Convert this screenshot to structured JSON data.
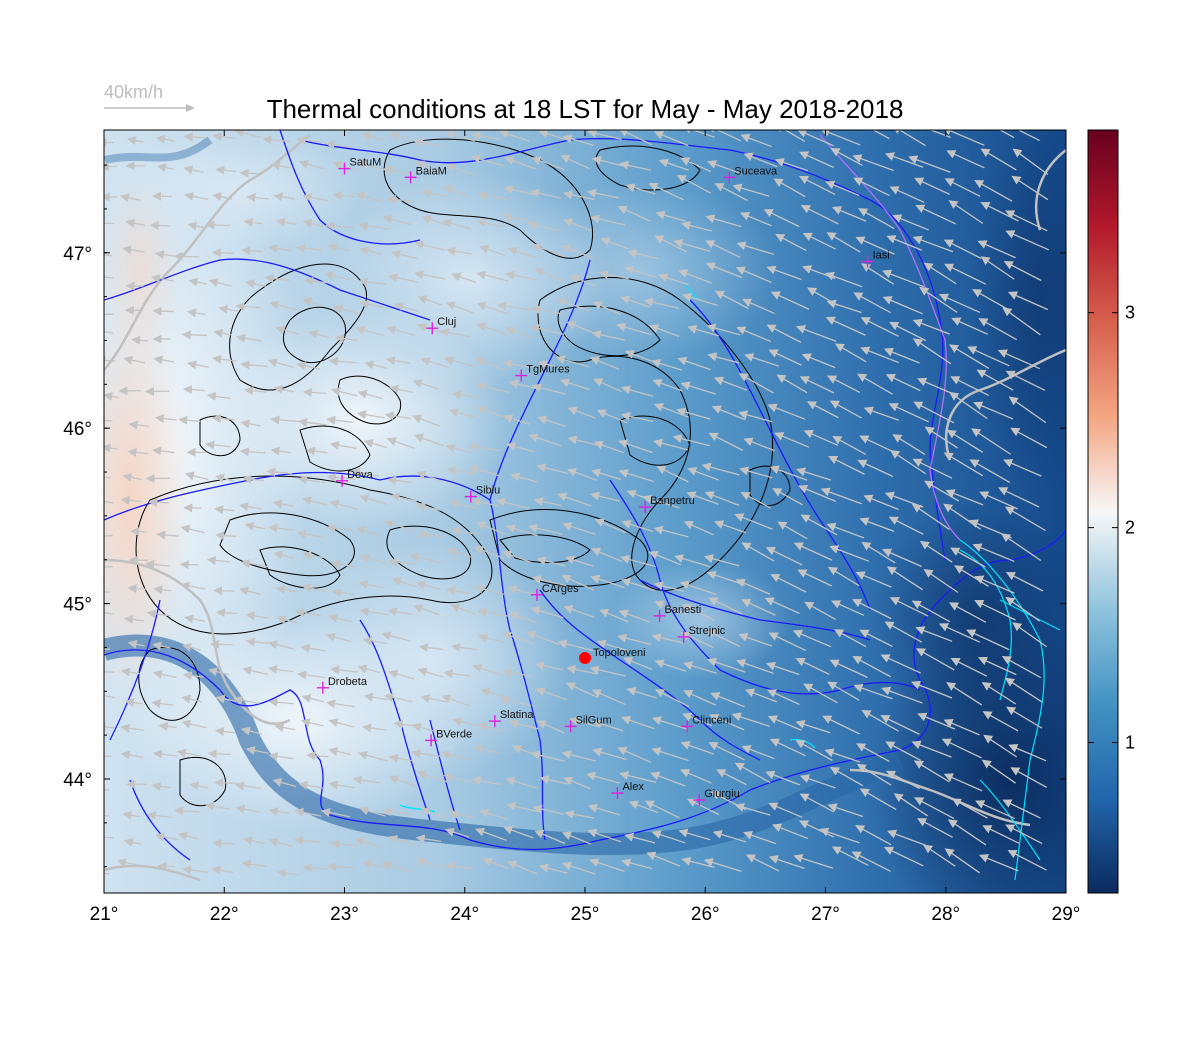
{
  "title": "Thermal conditions at 18 LST for May - May  2018-2018",
  "wind_scale": {
    "label": "40km/h",
    "color": "#bdbdbd"
  },
  "map": {
    "lon_range": [
      21,
      29
    ],
    "lat_range": [
      43.35,
      47.7
    ],
    "lon_ticks": [
      "21°",
      "22°",
      "23°",
      "24°",
      "25°",
      "26°",
      "27°",
      "28°",
      "29°"
    ],
    "lat_ticks": [
      "44°",
      "45°",
      "46°",
      "47°"
    ],
    "lat_tick_values": [
      44,
      45,
      46,
      47
    ],
    "colors": {
      "river": "#1a1aff",
      "border": "#c0c0c0",
      "contour": "#000000",
      "coast": "#00e5ff",
      "city_marker": "#e020e0",
      "wind_arrow": "#c4c4c4",
      "highlight_point": "#ff0000"
    }
  },
  "colorbar": {
    "ticks": [
      "1",
      "2",
      "3"
    ],
    "tick_values": [
      1,
      2,
      3
    ],
    "range": [
      0.3,
      3.85
    ],
    "colors": [
      "#0b2a5e",
      "#2166ac",
      "#4393c3",
      "#92c5de",
      "#f7f7f7",
      "#f4a582",
      "#d6604d",
      "#b2182b",
      "#67001f"
    ]
  },
  "cities": [
    {
      "name": "SatuM",
      "lon": 23.0,
      "lat": 47.48
    },
    {
      "name": "BaiaM",
      "lon": 23.55,
      "lat": 47.43
    },
    {
      "name": "Suceava",
      "lon": 26.2,
      "lat": 47.43
    },
    {
      "name": "Iasi",
      "lon": 27.35,
      "lat": 46.95
    },
    {
      "name": "Cluj",
      "lon": 23.73,
      "lat": 46.57
    },
    {
      "name": "TgMures",
      "lon": 24.47,
      "lat": 46.3
    },
    {
      "name": "Deva",
      "lon": 22.98,
      "lat": 45.7
    },
    {
      "name": "Sibiu",
      "lon": 24.05,
      "lat": 45.61
    },
    {
      "name": "Banpetru",
      "lon": 25.5,
      "lat": 45.55
    },
    {
      "name": "CArges",
      "lon": 24.6,
      "lat": 45.05
    },
    {
      "name": "Banesti",
      "lon": 25.62,
      "lat": 44.93
    },
    {
      "name": "Strejnic",
      "lon": 25.82,
      "lat": 44.81
    },
    {
      "name": "Drobeta",
      "lon": 22.82,
      "lat": 44.52
    },
    {
      "name": "Slatina",
      "lon": 24.25,
      "lat": 44.33
    },
    {
      "name": "SilGum",
      "lon": 24.88,
      "lat": 44.3
    },
    {
      "name": "Clinceni",
      "lon": 25.85,
      "lat": 44.3
    },
    {
      "name": "BVerde",
      "lon": 23.72,
      "lat": 44.22
    },
    {
      "name": "Alex",
      "lon": 25.27,
      "lat": 43.92
    },
    {
      "name": "Giurgiu",
      "lon": 25.95,
      "lat": 43.88
    }
  ],
  "highlight": {
    "name": "Topoloveni",
    "lon": 25.0,
    "lat": 44.69
  }
}
